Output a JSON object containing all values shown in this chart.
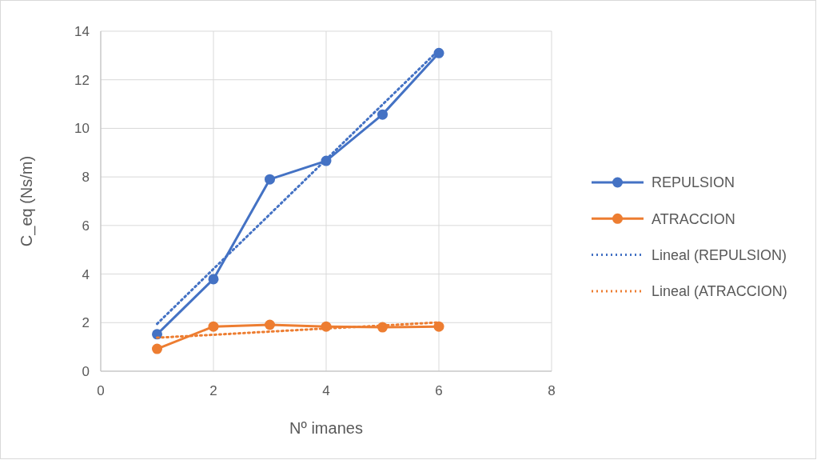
{
  "chart_data": {
    "type": "line",
    "xlabel": "Nº imanes",
    "ylabel": "C_eq (Ns/m)",
    "x": [
      1,
      2,
      3,
      4,
      5,
      6
    ],
    "xlim": [
      0,
      8
    ],
    "xticks": [
      0,
      2,
      4,
      6,
      8
    ],
    "ylim": [
      0,
      14
    ],
    "yticks": [
      0,
      2,
      4,
      6,
      8,
      10,
      12,
      14
    ],
    "grid": true,
    "legend": "right",
    "marker": "circle",
    "line_style": "solid",
    "series": [
      {
        "name": "REPULSION",
        "color": "#4472c4",
        "values": [
          1.52,
          3.79,
          7.9,
          8.66,
          10.57,
          13.1
        ]
      },
      {
        "name": "ATRACCION",
        "color": "#ed7d31",
        "values": [
          0.92,
          1.84,
          1.91,
          1.84,
          1.81,
          1.84
        ]
      },
      {
        "name": "Lineal (REPULSION)",
        "color": "#4472c4",
        "type": "line",
        "values": [
          1.95,
          4.21,
          6.46,
          8.72,
          10.98,
          13.23
        ],
        "line_style": "dotted",
        "marker": "none"
      },
      {
        "name": "Lineal (ATRACCION)",
        "color": "#ed7d31",
        "type": "line",
        "values": [
          1.38,
          1.5,
          1.63,
          1.76,
          1.88,
          2.01
        ],
        "line_style": "dotted",
        "marker": "none"
      }
    ]
  }
}
